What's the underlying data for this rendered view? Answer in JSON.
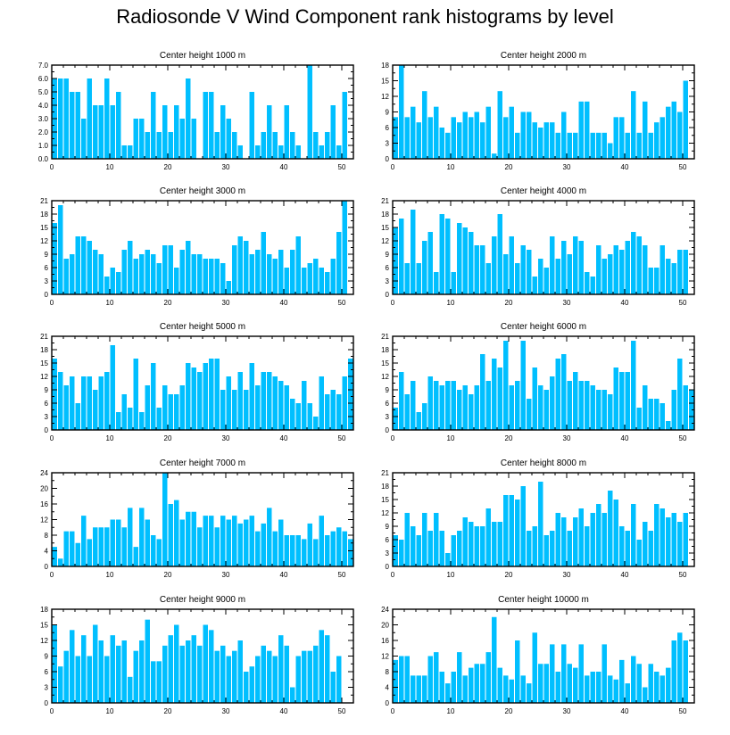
{
  "figure": {
    "title": "Radiosonde V Wind Component rank histograms by level"
  },
  "style": {
    "bar_color": "#00bfff",
    "frame_color": "#000000"
  },
  "chart_data": [
    {
      "type": "bar",
      "title": "Center height 1000 m",
      "xlim": [
        0,
        52
      ],
      "xticks": [
        0,
        10,
        20,
        30,
        40,
        50
      ],
      "ylim": [
        0,
        7
      ],
      "yticks": [
        0.0,
        1.0,
        2.0,
        3.0,
        4.0,
        5.0,
        6.0,
        7.0
      ],
      "ytick_labels": [
        "0.0",
        "1.0",
        "2.0",
        "3.0",
        "4.0",
        "5.0",
        "6.0",
        "7.0"
      ],
      "values": [
        6,
        6,
        6,
        5,
        5,
        3,
        6,
        4,
        4,
        6,
        4,
        5,
        1,
        1,
        3,
        3,
        2,
        5,
        2,
        4,
        2,
        4,
        3,
        6,
        3,
        0,
        5,
        5,
        2,
        4,
        3,
        2,
        1,
        0,
        5,
        1,
        2,
        4,
        2,
        1,
        4,
        2,
        1,
        0,
        7,
        2,
        1,
        2,
        4,
        1,
        5
      ]
    },
    {
      "type": "bar",
      "title": "Center height 2000 m",
      "xlim": [
        0,
        52
      ],
      "xticks": [
        0,
        10,
        20,
        30,
        40,
        50
      ],
      "ylim": [
        0,
        18
      ],
      "yticks": [
        0,
        3,
        6,
        9,
        12,
        15,
        18
      ],
      "ytick_labels": [
        "0",
        "3",
        "6",
        "9",
        "12",
        "15",
        "18"
      ],
      "values": [
        8,
        18,
        8,
        10,
        7,
        13,
        8,
        10,
        6,
        5,
        8,
        7,
        9,
        8,
        9,
        7,
        10,
        1,
        13,
        8,
        10,
        5,
        9,
        9,
        7,
        6,
        7,
        7,
        5,
        9,
        5,
        5,
        11,
        11,
        5,
        5,
        5,
        3,
        8,
        8,
        5,
        13,
        5,
        11,
        5,
        7,
        8,
        10,
        11,
        9,
        15
      ]
    },
    {
      "type": "bar",
      "title": "Center height 3000 m",
      "xlim": [
        0,
        52
      ],
      "xticks": [
        0,
        10,
        20,
        30,
        40,
        50
      ],
      "ylim": [
        0,
        21
      ],
      "yticks": [
        0,
        3,
        6,
        9,
        12,
        15,
        18,
        21
      ],
      "ytick_labels": [
        "0",
        "3",
        "6",
        "9",
        "12",
        "15",
        "18",
        "21"
      ],
      "values": [
        16,
        20,
        8,
        9,
        13,
        13,
        12,
        10,
        9,
        4,
        6,
        5,
        10,
        12,
        8,
        9,
        10,
        9,
        7,
        11,
        11,
        6,
        10,
        12,
        9,
        9,
        8,
        8,
        8,
        7,
        3,
        11,
        13,
        12,
        9,
        10,
        14,
        9,
        8,
        10,
        6,
        10,
        13,
        6,
        7,
        8,
        6,
        5,
        8,
        14,
        21
      ]
    },
    {
      "type": "bar",
      "title": "Center height 4000 m",
      "xlim": [
        0,
        52
      ],
      "xticks": [
        0,
        10,
        20,
        30,
        40,
        50
      ],
      "ylim": [
        0,
        21
      ],
      "yticks": [
        0,
        3,
        6,
        9,
        12,
        15,
        18,
        21
      ],
      "ytick_labels": [
        "0",
        "3",
        "6",
        "9",
        "12",
        "15",
        "18",
        "21"
      ],
      "values": [
        15,
        17,
        7,
        19,
        7,
        12,
        14,
        5,
        18,
        17,
        5,
        16,
        15,
        14,
        11,
        11,
        7,
        13,
        18,
        9,
        13,
        7,
        11,
        10,
        4,
        8,
        6,
        13,
        8,
        12,
        9,
        13,
        12,
        5,
        4,
        11,
        8,
        9,
        11,
        10,
        12,
        14,
        13,
        11,
        6,
        6,
        11,
        8,
        7,
        10,
        10
      ]
    },
    {
      "type": "bar",
      "title": "Center height 5000 m",
      "xlim": [
        0,
        52
      ],
      "xticks": [
        0,
        10,
        20,
        30,
        40,
        50
      ],
      "ylim": [
        0,
        21
      ],
      "yticks": [
        0,
        3,
        6,
        9,
        12,
        15,
        18,
        21
      ],
      "ytick_labels": [
        "0",
        "3",
        "6",
        "9",
        "12",
        "15",
        "18",
        "21"
      ],
      "values": [
        16,
        13,
        10,
        12,
        6,
        12,
        12,
        9,
        12,
        13,
        19,
        4,
        8,
        5,
        16,
        4,
        10,
        15,
        5,
        10,
        8,
        8,
        10,
        15,
        14,
        13,
        15,
        16,
        16,
        9,
        12,
        9,
        13,
        9,
        15,
        10,
        13,
        13,
        12,
        11,
        10,
        7,
        6,
        11,
        6,
        3,
        12,
        8,
        9,
        8,
        12,
        16
      ]
    },
    {
      "type": "bar",
      "title": "Center height 6000 m",
      "xlim": [
        0,
        52
      ],
      "xticks": [
        0,
        10,
        20,
        30,
        40,
        50
      ],
      "ylim": [
        0,
        21
      ],
      "yticks": [
        0,
        3,
        6,
        9,
        12,
        15,
        18,
        21
      ],
      "ytick_labels": [
        "0",
        "3",
        "6",
        "9",
        "12",
        "15",
        "18",
        "21"
      ],
      "values": [
        5,
        13,
        8,
        11,
        4,
        6,
        12,
        11,
        10,
        11,
        11,
        9,
        10,
        8,
        10,
        17,
        11,
        16,
        14,
        20,
        10,
        11,
        20,
        7,
        14,
        10,
        9,
        12,
        16,
        17,
        11,
        13,
        11,
        11,
        10,
        9,
        9,
        8,
        14,
        13,
        13,
        20,
        5,
        10,
        7,
        7,
        6,
        2,
        9,
        16,
        10,
        9
      ]
    },
    {
      "type": "bar",
      "title": "Center height 7000 m",
      "xlim": [
        0,
        52
      ],
      "xticks": [
        0,
        10,
        20,
        30,
        40,
        50
      ],
      "ylim": [
        0,
        24
      ],
      "yticks": [
        0,
        4,
        8,
        12,
        16,
        20,
        24
      ],
      "ytick_labels": [
        "0",
        "4",
        "8",
        "12",
        "16",
        "20",
        "24"
      ],
      "values": [
        5,
        2,
        9,
        9,
        6,
        13,
        7,
        10,
        10,
        10,
        12,
        12,
        10,
        15,
        5,
        15,
        12,
        8,
        7,
        24,
        16,
        17,
        12,
        14,
        14,
        10,
        13,
        13,
        10,
        13,
        12,
        13,
        11,
        12,
        13,
        9,
        11,
        15,
        9,
        12,
        8,
        8,
        8,
        7,
        11,
        7,
        13,
        8,
        9,
        10,
        9,
        7
      ]
    },
    {
      "type": "bar",
      "title": "Center height 8000 m",
      "xlim": [
        0,
        52
      ],
      "xticks": [
        0,
        10,
        20,
        30,
        40,
        50
      ],
      "ylim": [
        0,
        21
      ],
      "yticks": [
        0,
        3,
        6,
        9,
        12,
        15,
        18,
        21
      ],
      "ytick_labels": [
        "0",
        "3",
        "6",
        "9",
        "12",
        "15",
        "18",
        "21"
      ],
      "values": [
        7,
        6,
        12,
        9,
        7,
        12,
        8,
        12,
        8,
        3,
        7,
        8,
        11,
        10,
        9,
        9,
        13,
        10,
        10,
        16,
        16,
        15,
        18,
        8,
        9,
        19,
        7,
        8,
        12,
        11,
        8,
        11,
        13,
        9,
        12,
        14,
        12,
        17,
        15,
        9,
        8,
        14,
        6,
        10,
        8,
        14,
        13,
        11,
        12,
        10,
        12
      ]
    },
    {
      "type": "bar",
      "title": "Center height 9000 m",
      "xlim": [
        0,
        52
      ],
      "xticks": [
        0,
        10,
        20,
        30,
        40,
        50
      ],
      "ylim": [
        0,
        18
      ],
      "yticks": [
        0,
        3,
        6,
        9,
        12,
        15,
        18
      ],
      "ytick_labels": [
        "0",
        "3",
        "6",
        "9",
        "12",
        "15",
        "18"
      ],
      "values": [
        15,
        7,
        10,
        14,
        9,
        13,
        9,
        15,
        12,
        9,
        13,
        11,
        12,
        5,
        10,
        12,
        16,
        8,
        8,
        11,
        13,
        15,
        11,
        12,
        13,
        11,
        15,
        14,
        10,
        11,
        9,
        10,
        12,
        6,
        7,
        9,
        11,
        10,
        9,
        13,
        11,
        3,
        9,
        10,
        10,
        11,
        14,
        13,
        6,
        9
      ]
    },
    {
      "type": "bar",
      "title": "Center height 10000 m",
      "xlim": [
        0,
        52
      ],
      "xticks": [
        0,
        10,
        20,
        30,
        40,
        50
      ],
      "ylim": [
        0,
        24
      ],
      "yticks": [
        0,
        4,
        8,
        12,
        16,
        20,
        24
      ],
      "ytick_labels": [
        "0",
        "4",
        "8",
        "12",
        "16",
        "20",
        "24"
      ],
      "values": [
        11,
        12,
        12,
        7,
        7,
        7,
        12,
        13,
        8,
        5,
        8,
        13,
        7,
        9,
        10,
        10,
        13,
        22,
        9,
        7,
        6,
        16,
        7,
        5,
        18,
        10,
        10,
        15,
        8,
        15,
        10,
        9,
        15,
        7,
        8,
        8,
        15,
        7,
        6,
        11,
        5,
        12,
        10,
        4,
        10,
        8,
        7,
        9,
        16,
        18,
        16
      ]
    }
  ]
}
